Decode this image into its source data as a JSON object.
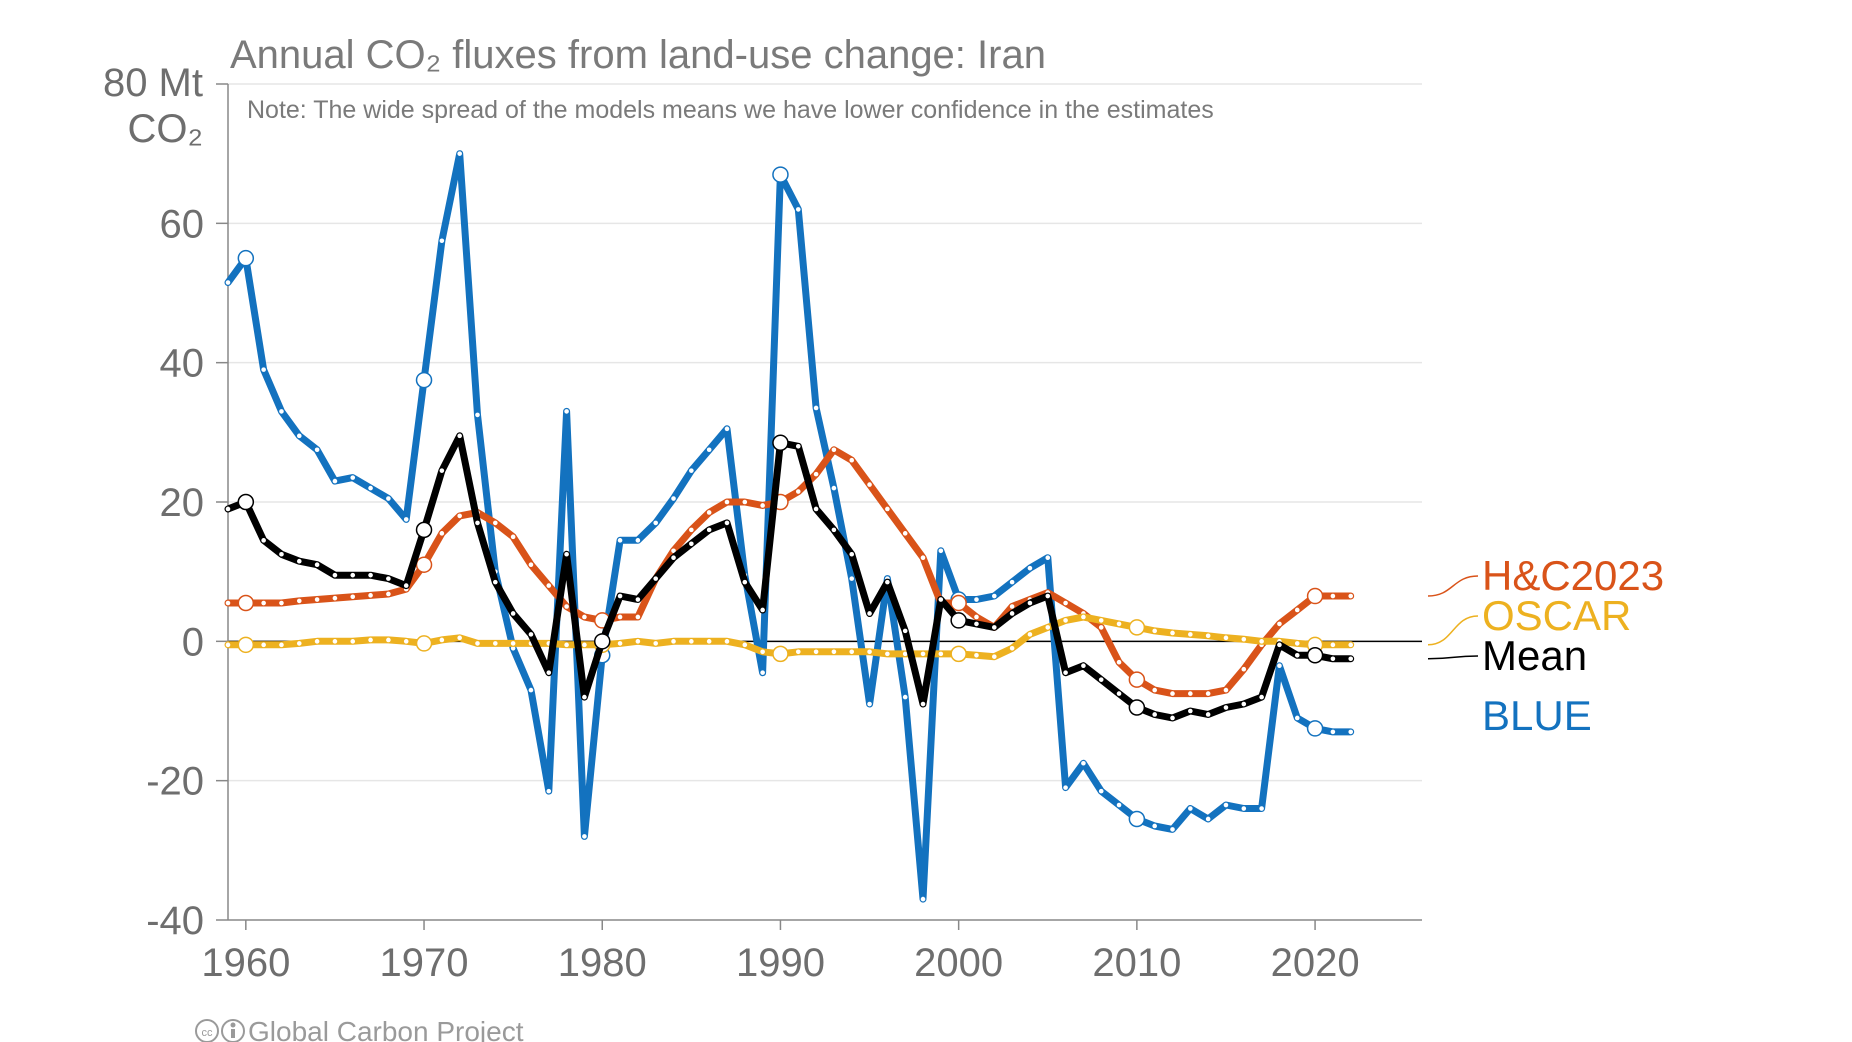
{
  "chart_data": {
    "type": "line",
    "title": "Annual CO₂ fluxes from land-use change: Iran",
    "note": "Note: The wide spread of the models means we have lower confidence in the estimates",
    "ylabel_line1": "80 Mt",
    "ylabel_line2": "CO₂",
    "xlim": [
      1959,
      2026
    ],
    "ylim": [
      -40,
      80
    ],
    "x_ticks": [
      1960,
      1970,
      1980,
      1990,
      2000,
      2010,
      2020
    ],
    "y_ticks": [
      -40,
      -20,
      0,
      20,
      40,
      60
    ],
    "y_tick_labels": [
      "-40",
      "-20",
      "0",
      "20",
      "40",
      "60"
    ],
    "x_tick_labels": [
      "1960",
      "1970",
      "1980",
      "1990",
      "2000",
      "2010",
      "2020"
    ],
    "grid": true,
    "highlight_years": [
      1960,
      1970,
      1980,
      1990,
      2000,
      2010,
      2020
    ],
    "x": [
      1959,
      1960,
      1961,
      1962,
      1963,
      1964,
      1965,
      1966,
      1967,
      1968,
      1969,
      1970,
      1971,
      1972,
      1973,
      1974,
      1975,
      1976,
      1977,
      1978,
      1979,
      1980,
      1981,
      1982,
      1983,
      1984,
      1985,
      1986,
      1987,
      1988,
      1989,
      1990,
      1991,
      1992,
      1993,
      1994,
      1995,
      1996,
      1997,
      1998,
      1999,
      2000,
      2001,
      2002,
      2003,
      2004,
      2005,
      2006,
      2007,
      2008,
      2009,
      2010,
      2011,
      2012,
      2013,
      2014,
      2015,
      2016,
      2017,
      2018,
      2019,
      2020,
      2021,
      2022
    ],
    "series": [
      {
        "name": "BLUE",
        "color": "#1372bf",
        "values": [
          51.5,
          55,
          39,
          33,
          29.5,
          27.5,
          23,
          23.5,
          22,
          20.5,
          17.5,
          37.5,
          57.5,
          70,
          32.5,
          10,
          -1,
          -7,
          -21.5,
          33,
          -28,
          -2,
          14.5,
          14.5,
          17,
          20.5,
          24.5,
          27.5,
          30.5,
          9.5,
          -4.5,
          67,
          62,
          33.5,
          22,
          9,
          -9,
          9,
          -8,
          -37,
          13,
          6,
          6,
          6.5,
          8.5,
          10.5,
          12,
          -21,
          -17.5,
          -21.5,
          -23.5,
          -25.5,
          -26.5,
          -27,
          -24,
          -25.5,
          -23.5,
          -24,
          -24,
          -3.5,
          -11,
          -12.5,
          -13,
          -13
        ]
      },
      {
        "name": "H&C2023",
        "color": "#d95319",
        "values": [
          5.5,
          5.5,
          5.5,
          5.5,
          5.8,
          6,
          6.2,
          6.4,
          6.6,
          6.8,
          7.5,
          11,
          15.5,
          18,
          18.5,
          17,
          15,
          11,
          8,
          5,
          3.5,
          3,
          3.5,
          3.5,
          9,
          13,
          16,
          18.5,
          20,
          20,
          19.5,
          20,
          21.5,
          24,
          27.5,
          26,
          22.5,
          19,
          15.5,
          12,
          5.5,
          5.5,
          3.5,
          2,
          5,
          6,
          7,
          5.5,
          4,
          2,
          -3,
          -5.5,
          -7,
          -7.5,
          -7.5,
          -7.5,
          -7,
          -4,
          -0.5,
          2.5,
          4.5,
          6.5,
          6.5,
          6.5
        ]
      },
      {
        "name": "OSCAR",
        "color": "#edb120",
        "values": [
          -0.5,
          -0.5,
          -0.5,
          -0.5,
          -0.3,
          0,
          0,
          0,
          0.2,
          0.2,
          0,
          -0.3,
          0.2,
          0.5,
          -0.3,
          -0.3,
          -0.3,
          -0.3,
          -0.3,
          -0.5,
          -0.5,
          -0.5,
          -0.3,
          0,
          -0.3,
          0,
          0,
          0,
          0,
          -0.5,
          -1.5,
          -1.8,
          -1.5,
          -1.5,
          -1.5,
          -1.5,
          -1.5,
          -1.8,
          -1.8,
          -1.8,
          -1.8,
          -1.8,
          -2,
          -2.2,
          -1,
          1,
          2,
          3,
          3.5,
          3,
          2.5,
          2,
          1.5,
          1.2,
          1,
          0.8,
          0.5,
          0.3,
          0,
          0,
          -0.3,
          -0.5,
          -0.5,
          -0.5
        ]
      },
      {
        "name": "Mean",
        "color": "#000000",
        "values": [
          19,
          20,
          14.5,
          12.5,
          11.5,
          11,
          9.5,
          9.5,
          9.5,
          9,
          8,
          16,
          24.5,
          29.5,
          17,
          8.5,
          4,
          1,
          -4.5,
          12.5,
          -8,
          0,
          6.5,
          6,
          9,
          12,
          14,
          16,
          17,
          8.5,
          4.5,
          28.5,
          28,
          19,
          16,
          12.5,
          4,
          8.5,
          1.5,
          -9,
          6,
          3,
          2.5,
          2,
          4,
          5.5,
          6.5,
          -4.5,
          -3.5,
          -5.5,
          -7.5,
          -9.5,
          -10.5,
          -11,
          -10,
          -10.5,
          -9.5,
          -9,
          -8,
          -0.5,
          -2,
          -2,
          -2.5,
          -2.5
        ]
      }
    ],
    "legend": [
      {
        "label": "H&C2023",
        "color": "#d95319"
      },
      {
        "label": "OSCAR",
        "color": "#edb120"
      },
      {
        "label": "Mean",
        "color": "#000000"
      },
      {
        "label": "BLUE",
        "color": "#1372bf"
      }
    ],
    "credit": "Global Carbon Project"
  }
}
